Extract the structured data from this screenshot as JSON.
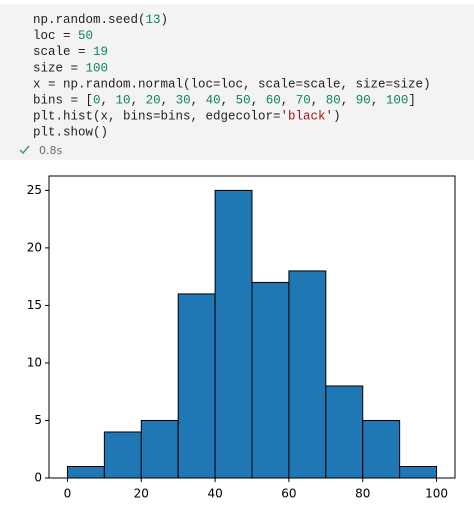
{
  "code": {
    "lines": [
      "np.random.seed(13)",
      "loc = 50",
      "scale = 19",
      "size = 100",
      "x = np.random.normal(loc=loc, scale=scale, size=size)",
      "bins = [0, 10, 20, 30, 40, 50, 60, 70, 80, 90, 100]",
      "plt.hist(x, bins=bins, edgecolor='black')",
      "plt.show()"
    ],
    "status": "0.8s"
  },
  "chart_data": {
    "type": "histogram",
    "bins": [
      0,
      10,
      20,
      30,
      40,
      50,
      60,
      70,
      80,
      90,
      100
    ],
    "values": [
      1,
      4,
      5,
      16,
      25,
      17,
      18,
      8,
      5,
      1
    ],
    "color": "#1f77b4",
    "edgecolor": "#000000",
    "xlim": [
      -5,
      105
    ],
    "ylim": [
      0,
      26.25
    ],
    "xticks": [
      0,
      20,
      40,
      60,
      80,
      100
    ],
    "yticks": [
      0,
      5,
      10,
      15,
      20,
      25
    ]
  }
}
